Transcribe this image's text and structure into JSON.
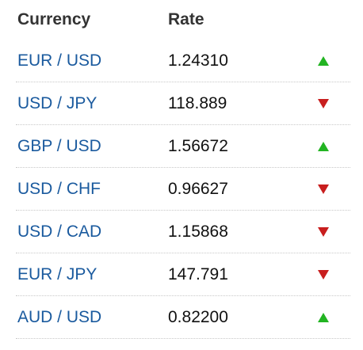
{
  "header": {
    "currency_label": "Currency",
    "rate_label": "Rate"
  },
  "colors": {
    "link": "#1a5a9e",
    "up": "#22b422",
    "down": "#c81e1e",
    "divider": "#c8c8c8"
  },
  "rows": [
    {
      "pair": "EUR / USD",
      "rate": "1.24310",
      "trend": "up"
    },
    {
      "pair": "USD / JPY",
      "rate": "118.889",
      "trend": "down"
    },
    {
      "pair": "GBP / USD",
      "rate": "1.56672",
      "trend": "up"
    },
    {
      "pair": "USD / CHF",
      "rate": "0.96627",
      "trend": "down"
    },
    {
      "pair": "USD / CAD",
      "rate": "1.15868",
      "trend": "down"
    },
    {
      "pair": "EUR / JPY",
      "rate": "147.791",
      "trend": "down"
    },
    {
      "pair": "AUD / USD",
      "rate": "0.82200",
      "trend": "up"
    }
  ]
}
